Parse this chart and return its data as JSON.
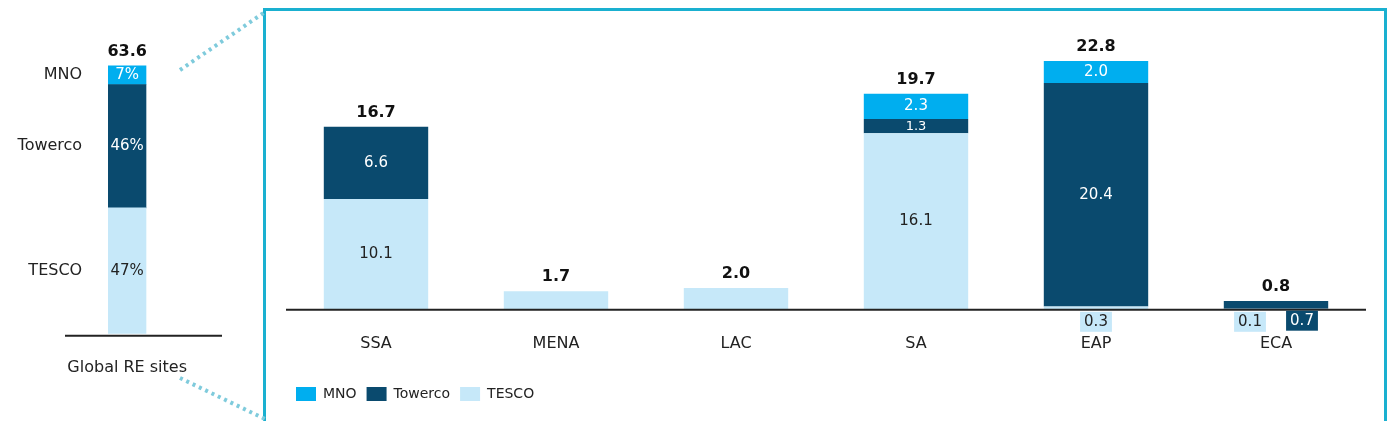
{
  "chart_data": [
    {
      "type": "bar",
      "stacked": true,
      "categories": [
        "Global RE sites"
      ],
      "legend": "left",
      "tick_labels": "x",
      "grid": false,
      "annotations": [
        {
          "text": "63.6",
          "x": "Global RE sites",
          "y": 100
        }
      ],
      "series": [
        {
          "name": "TESCO",
          "color": "#c6e8f9",
          "values": [
            47
          ],
          "value_labels": [
            "47%"
          ]
        },
        {
          "name": "Towerco",
          "color": "#0a4a6e",
          "values": [
            46
          ],
          "value_labels": [
            "46%"
          ]
        },
        {
          "name": "MNO",
          "color": "#00aeef",
          "values": [
            7
          ],
          "value_labels": [
            "7%"
          ]
        }
      ]
    },
    {
      "type": "bar",
      "stacked": true,
      "categories": [
        "SSA",
        "MENA",
        "LAC",
        "SA",
        "EAP",
        "ECA"
      ],
      "legend": "bottom left",
      "tick_labels": "x",
      "grid": false,
      "totals": [
        "16.7",
        "1.7",
        "2.0",
        "19.7",
        "22.8",
        "0.8"
      ],
      "series": [
        {
          "name": "TESCO",
          "color": "#c6e8f9",
          "values": [
            10.1,
            1.7,
            2.0,
            16.1,
            0.3,
            0.1
          ],
          "value_labels": [
            "10.1",
            null,
            null,
            "16.1",
            "0.3",
            "0.1"
          ]
        },
        {
          "name": "Towerco",
          "color": "#0a4a6e",
          "values": [
            6.6,
            null,
            null,
            1.3,
            20.4,
            0.7
          ],
          "value_labels": [
            "6.6",
            null,
            null,
            "1.3",
            "20.4",
            "0.7"
          ]
        },
        {
          "name": "MNO",
          "color": "#00aeef",
          "values": [
            null,
            null,
            null,
            2.3,
            2.0,
            null
          ],
          "value_labels": [
            null,
            null,
            null,
            "2.3",
            "2.0",
            null
          ]
        }
      ]
    }
  ]
}
